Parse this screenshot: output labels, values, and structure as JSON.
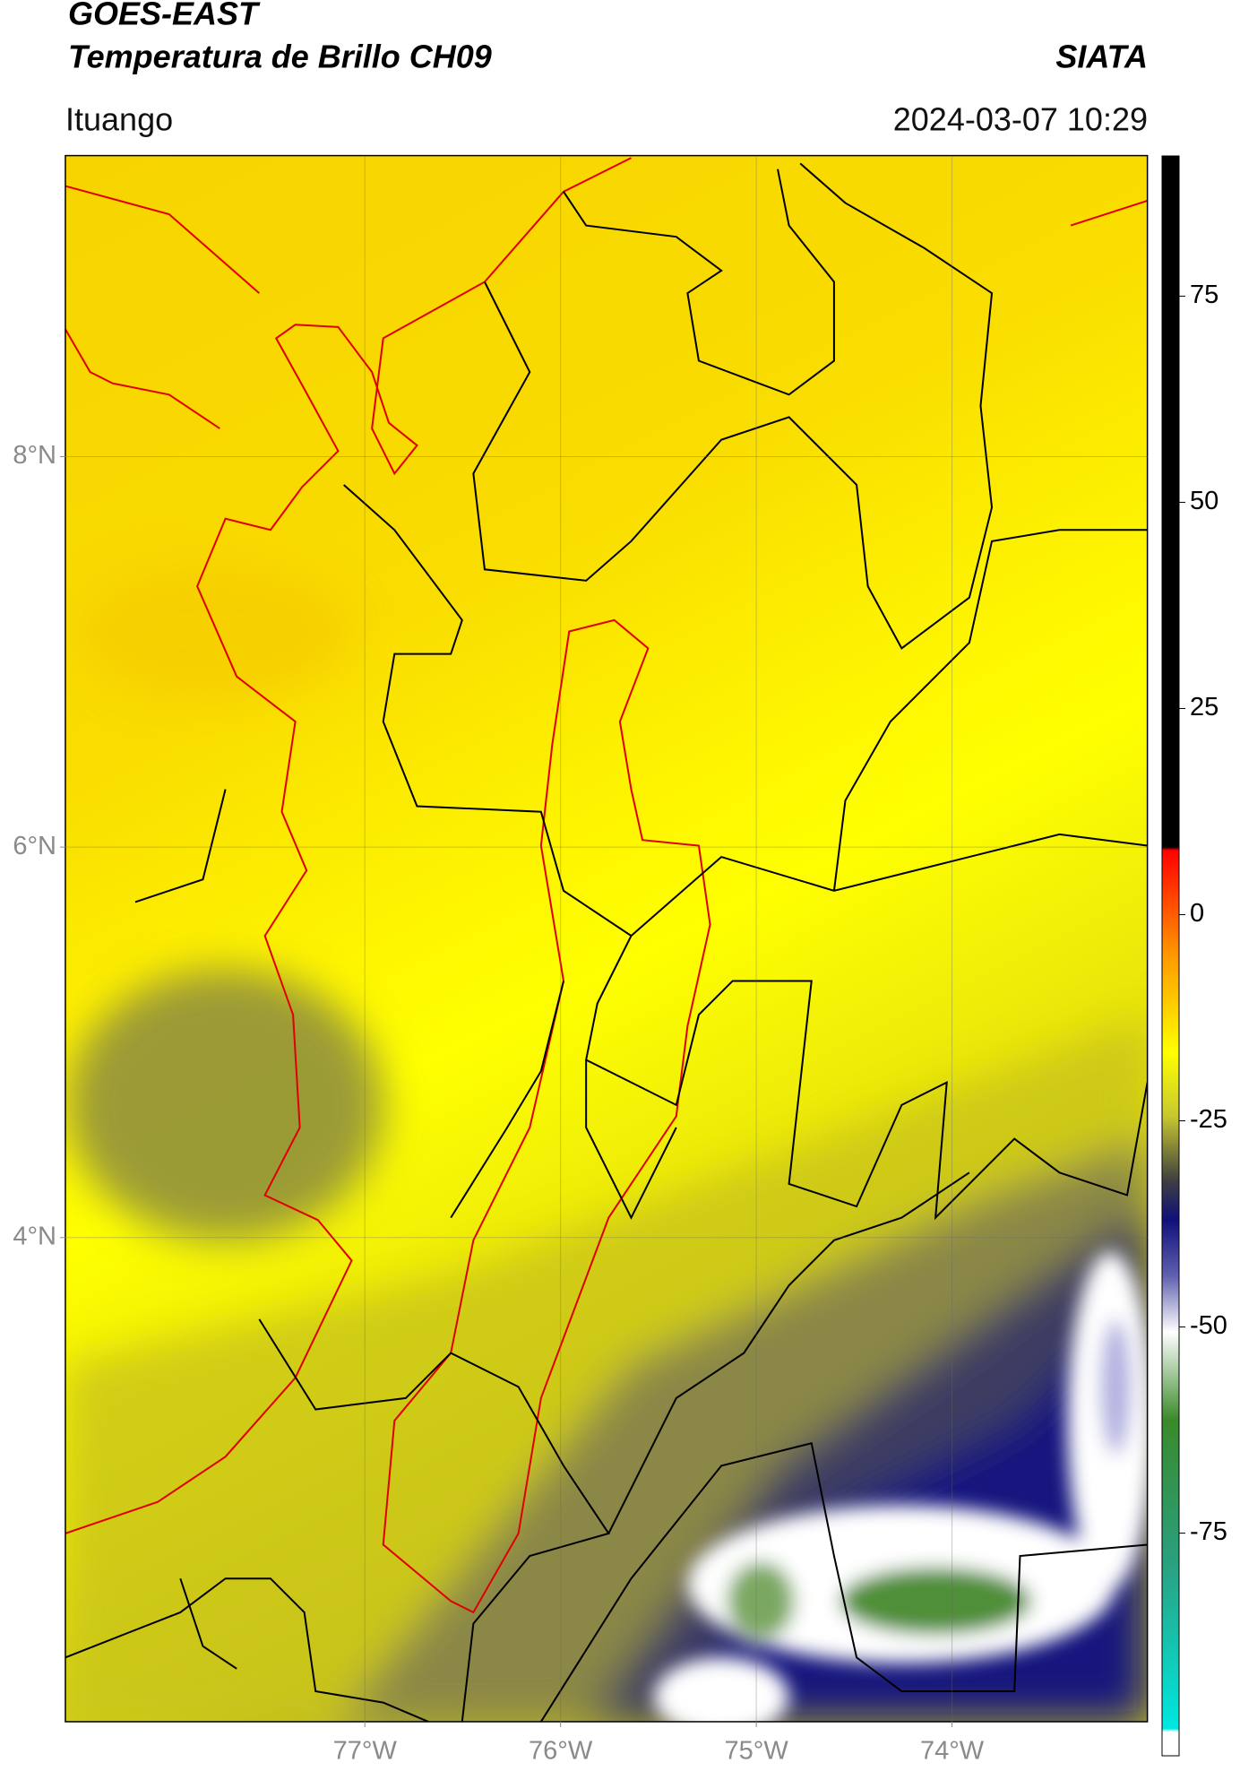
{
  "chart_data": {
    "type": "map",
    "title": "GOES-EAST",
    "subtitle": "Temperatura de Brillo CH09",
    "source": "SIATA",
    "location": "Ituango",
    "datetime": "2024-03-07 10:29",
    "xlim": [
      -78.53,
      -73.0
    ],
    "ylim": [
      1.52,
      9.54
    ],
    "xticks": [
      {
        "value": -77,
        "label": "77°W"
      },
      {
        "value": -76,
        "label": "76°W"
      },
      {
        "value": -75,
        "label": "75°W"
      },
      {
        "value": -74,
        "label": "74°W"
      }
    ],
    "yticks": [
      {
        "value": 4,
        "label": "4°N"
      },
      {
        "value": 6,
        "label": "6°N"
      },
      {
        "value": 8,
        "label": "8°N"
      }
    ],
    "grid": true,
    "colorbar": {
      "lim": [
        -102,
        92
      ],
      "ticks": [
        75,
        50,
        25,
        0,
        -25,
        -50,
        -75
      ]
    }
  }
}
